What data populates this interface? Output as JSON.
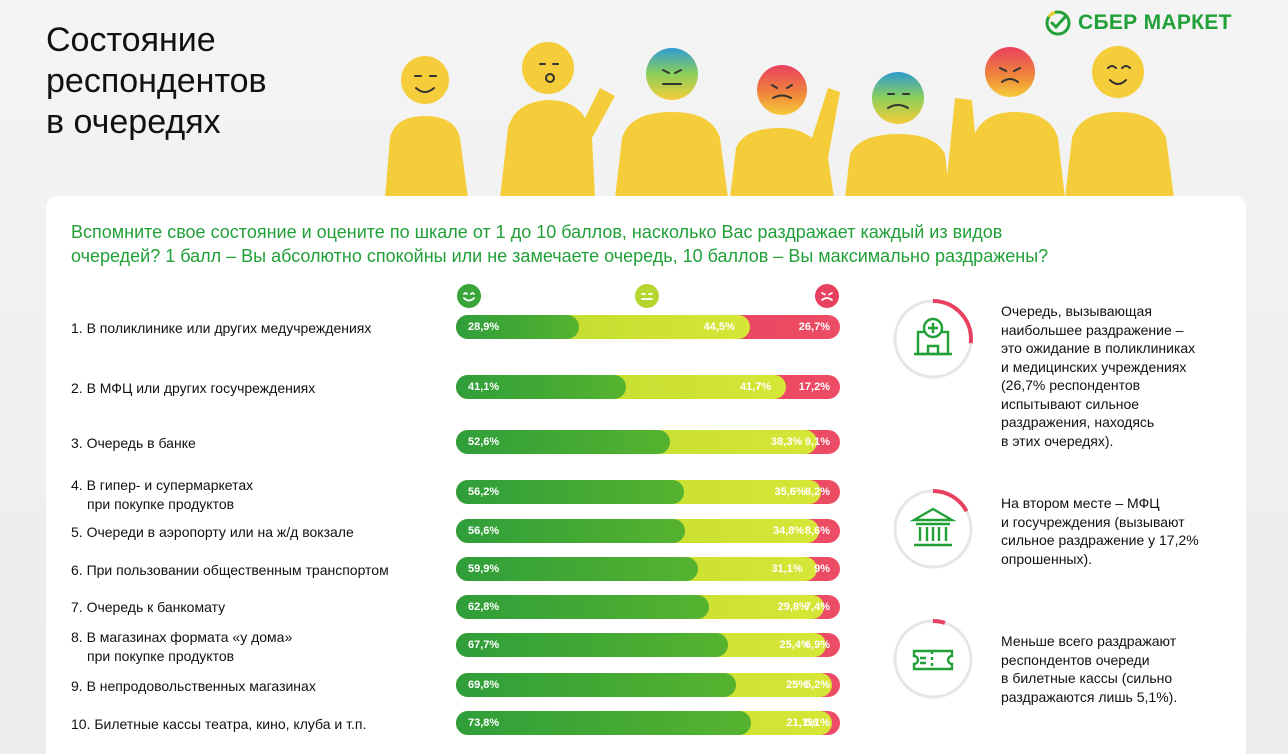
{
  "title_lines": [
    "Состояние",
    "респондентов",
    "в очередях"
  ],
  "brand": {
    "name": "СБЕР МАРКЕТ",
    "color": "#21a038"
  },
  "question_lines": [
    "Вспомните свое состояние и оцените по шкале от 1 до 10 баллов, насколько Вас раздражает каждый из видов",
    "очередей? 1 балл – Вы абсолютно спокойны или не замечаете очередь, 10 баллов – Вы максимально раздражены?"
  ],
  "legend_icons": [
    "smile-face-icon",
    "neutral-face-icon",
    "angry-face-icon"
  ],
  "colors": {
    "calm": "#3aa63a",
    "neutral": "#c8dd33",
    "irritated": "#e8405f",
    "figure": "#f5cd3a"
  },
  "chart_data": {
    "type": "bar",
    "stacked": true,
    "orientation": "horizontal",
    "categories": [
      [
        "1. В поликлинике или других медучреждениях"
      ],
      [
        "2. В МФЦ или других госучреждениях"
      ],
      [
        "3. Очередь в банке"
      ],
      [
        "4. В гипер- и супермаркетах",
        "при покупке продуктов"
      ],
      [
        "5. Очереди в аэропорту или на ж/д вокзале"
      ],
      [
        "6. При пользовании общественным транспортом"
      ],
      [
        "7. Очередь к банкомату"
      ],
      [
        "8. В магазинах формата «у дома»",
        "при покупке продуктов"
      ],
      [
        "9. В непродовольственных магазинах"
      ],
      [
        "10. Билетные кассы театра, кино, клуба и т.п."
      ]
    ],
    "series": [
      {
        "icon": "smile-face-icon",
        "values": [
          28.9,
          41.1,
          52.6,
          56.2,
          56.6,
          59.9,
          62.8,
          67.7,
          69.8,
          73.8
        ],
        "labels": [
          "28,9%",
          "41,1%",
          "52,6%",
          "56,2%",
          "56,6%",
          "59,9%",
          "62,8%",
          "67,7%",
          "69,8%",
          "73,8%"
        ]
      },
      {
        "icon": "neutral-face-icon",
        "values": [
          44.5,
          41.7,
          38.3,
          35.6,
          34.8,
          31.1,
          29.8,
          25.4,
          25,
          21.1
        ],
        "labels": [
          "44,5%",
          "41,7%",
          "38,3%",
          "35,6%",
          "34,8%",
          "31,1%",
          "29,8%",
          "25,4%",
          "25%",
          "21,1%"
        ]
      },
      {
        "icon": "angry-face-icon",
        "values": [
          26.7,
          17.2,
          9.1,
          8.2,
          8.6,
          9,
          7.4,
          6.9,
          5.2,
          5.1
        ],
        "labels": [
          "26,7%",
          "17,2%",
          "9,1%",
          "8,2%",
          "8,6%",
          "9%",
          "7,4%",
          "6,9%",
          "5,2%",
          "5,1%"
        ]
      }
    ]
  },
  "insights": [
    {
      "icon": "clinic-icon",
      "ring_fraction": 0.267,
      "lines": [
        "Очередь, вызывающая",
        "наибольшее раздражение –",
        "это ожидание в поликлиниках",
        "и медицинских учреждениях",
        "(26,7% респондентов",
        "испытывают сильное",
        "раздражения, находясь",
        "в этих очередях)."
      ]
    },
    {
      "icon": "government-building-icon",
      "ring_fraction": 0.172,
      "lines": [
        "На втором месте – МФЦ",
        "и госучреждения (вызывают",
        "сильное раздражение у 17,2%",
        "опрошенных)."
      ]
    },
    {
      "icon": "ticket-icon",
      "ring_fraction": 0.051,
      "lines": [
        "Меньше всего раздражают",
        "респондентов очереди",
        "в билетные кассы (сильно",
        "раздражаются лишь 5,1%)."
      ]
    }
  ]
}
